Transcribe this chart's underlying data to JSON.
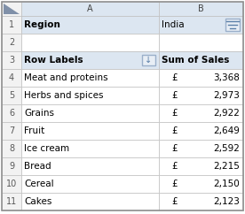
{
  "row_numbers": [
    "",
    "1",
    "2",
    "3",
    "4",
    "5",
    "6",
    "7",
    "8",
    "9",
    "10",
    "11"
  ],
  "col_a_labels": [
    "A",
    "Region",
    "",
    "Row Labels",
    "Meat and proteins",
    "Herbs and spices",
    "Grains",
    "Fruit",
    "Ice cream",
    "Bread",
    "Cereal",
    "Cakes"
  ],
  "col_b_labels": [
    "B",
    "India",
    "",
    "Sum of Sales",
    "£  3,368",
    "£  2,973",
    "£  2,922",
    "£  2,649",
    "£  2,592",
    "£  2,215",
    "£  2,150",
    "£  2,123"
  ],
  "col_b_values": [
    "",
    "",
    "",
    "",
    "3,368",
    "2,973",
    "2,922",
    "2,649",
    "2,592",
    "2,215",
    "2,150",
    "2,123"
  ],
  "col_b_currency": [
    "",
    "",
    "",
    "",
    "£",
    "£",
    "£",
    "£",
    "£",
    "£",
    "£",
    "£"
  ],
  "header_col_bg": "#dce6f1",
  "header_row_bg": "#dce6f1",
  "row_num_bg": "#f2f2f2",
  "white_bg": "#ffffff",
  "col_header_bg": "#dce6f1",
  "grid_color": "#c0c0c0",
  "text_color": "#000000",
  "row_num_text": "#595959",
  "filter_icon_bg": "#dce6f1",
  "filter_icon_border": "#8fa8c8"
}
